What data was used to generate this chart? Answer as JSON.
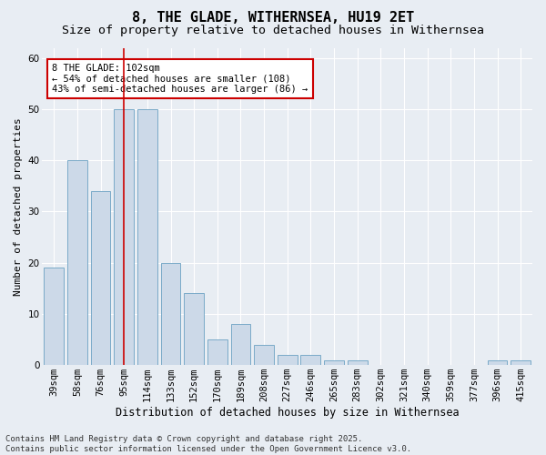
{
  "title1": "8, THE GLADE, WITHERNSEA, HU19 2ET",
  "title2": "Size of property relative to detached houses in Withernsea",
  "xlabel": "Distribution of detached houses by size in Withernsea",
  "ylabel": "Number of detached properties",
  "categories": [
    "39sqm",
    "58sqm",
    "76sqm",
    "95sqm",
    "114sqm",
    "133sqm",
    "152sqm",
    "170sqm",
    "189sqm",
    "208sqm",
    "227sqm",
    "246sqm",
    "265sqm",
    "283sqm",
    "302sqm",
    "321sqm",
    "340sqm",
    "359sqm",
    "377sqm",
    "396sqm",
    "415sqm"
  ],
  "values": [
    19,
    40,
    34,
    50,
    50,
    20,
    14,
    5,
    8,
    4,
    2,
    2,
    1,
    1,
    0,
    0,
    0,
    0,
    0,
    1,
    1
  ],
  "bar_color": "#ccd9e8",
  "bar_edge_color": "#7aaac8",
  "highlight_index": 3,
  "highlight_line_color": "#cc0000",
  "annotation_text": "8 THE GLADE: 102sqm\n← 54% of detached houses are smaller (108)\n43% of semi-detached houses are larger (86) →",
  "annotation_box_color": "#ffffff",
  "annotation_box_edge_color": "#cc0000",
  "ylim": [
    0,
    62
  ],
  "yticks": [
    0,
    10,
    20,
    30,
    40,
    50,
    60
  ],
  "background_color": "#e8edf3",
  "grid_color": "#ffffff",
  "footer_text": "Contains HM Land Registry data © Crown copyright and database right 2025.\nContains public sector information licensed under the Open Government Licence v3.0.",
  "title1_fontsize": 11,
  "title2_fontsize": 9.5,
  "xlabel_fontsize": 8.5,
  "ylabel_fontsize": 8,
  "tick_fontsize": 7.5,
  "annotation_fontsize": 7.5,
  "footer_fontsize": 6.5
}
